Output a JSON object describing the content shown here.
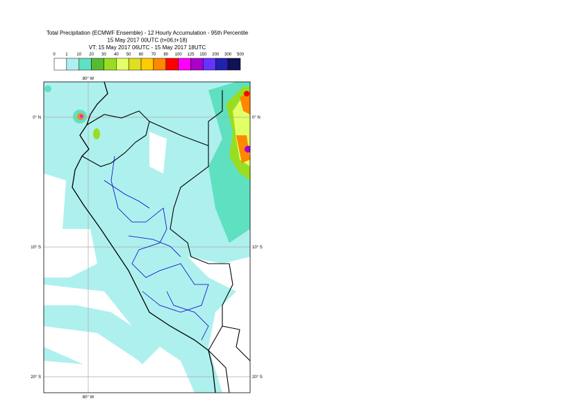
{
  "header": {
    "title_lines": [
      "Total Precipitation (ECMWF Ensemble) - 12 Hourly Accumulation - 95th Percentile",
      "15 May 2017 00UTC (t+06,t+18)",
      "VT: 15 May 2017 06UTC - 15 May 2017 18UTC"
    ]
  },
  "legend": {
    "labels": [
      0,
      1,
      10,
      20,
      30,
      40,
      50,
      60,
      70,
      80,
      100,
      125,
      150,
      200,
      300,
      500
    ],
    "colors": [
      "#ffffff",
      "#aef0ee",
      "#5fe0c0",
      "#55bb33",
      "#99dd22",
      "#e2ff66",
      "#dede22",
      "#ffcc00",
      "#ff8800",
      "#ff0000",
      "#ff00ff",
      "#aa00cc",
      "#6633ff",
      "#2222aa",
      "#111155"
    ]
  },
  "map": {
    "lon_labels": {
      "top": "80° W",
      "bottom": "80° W"
    },
    "lat_labels": [
      "0° N",
      "10° S",
      "20° S"
    ]
  }
}
